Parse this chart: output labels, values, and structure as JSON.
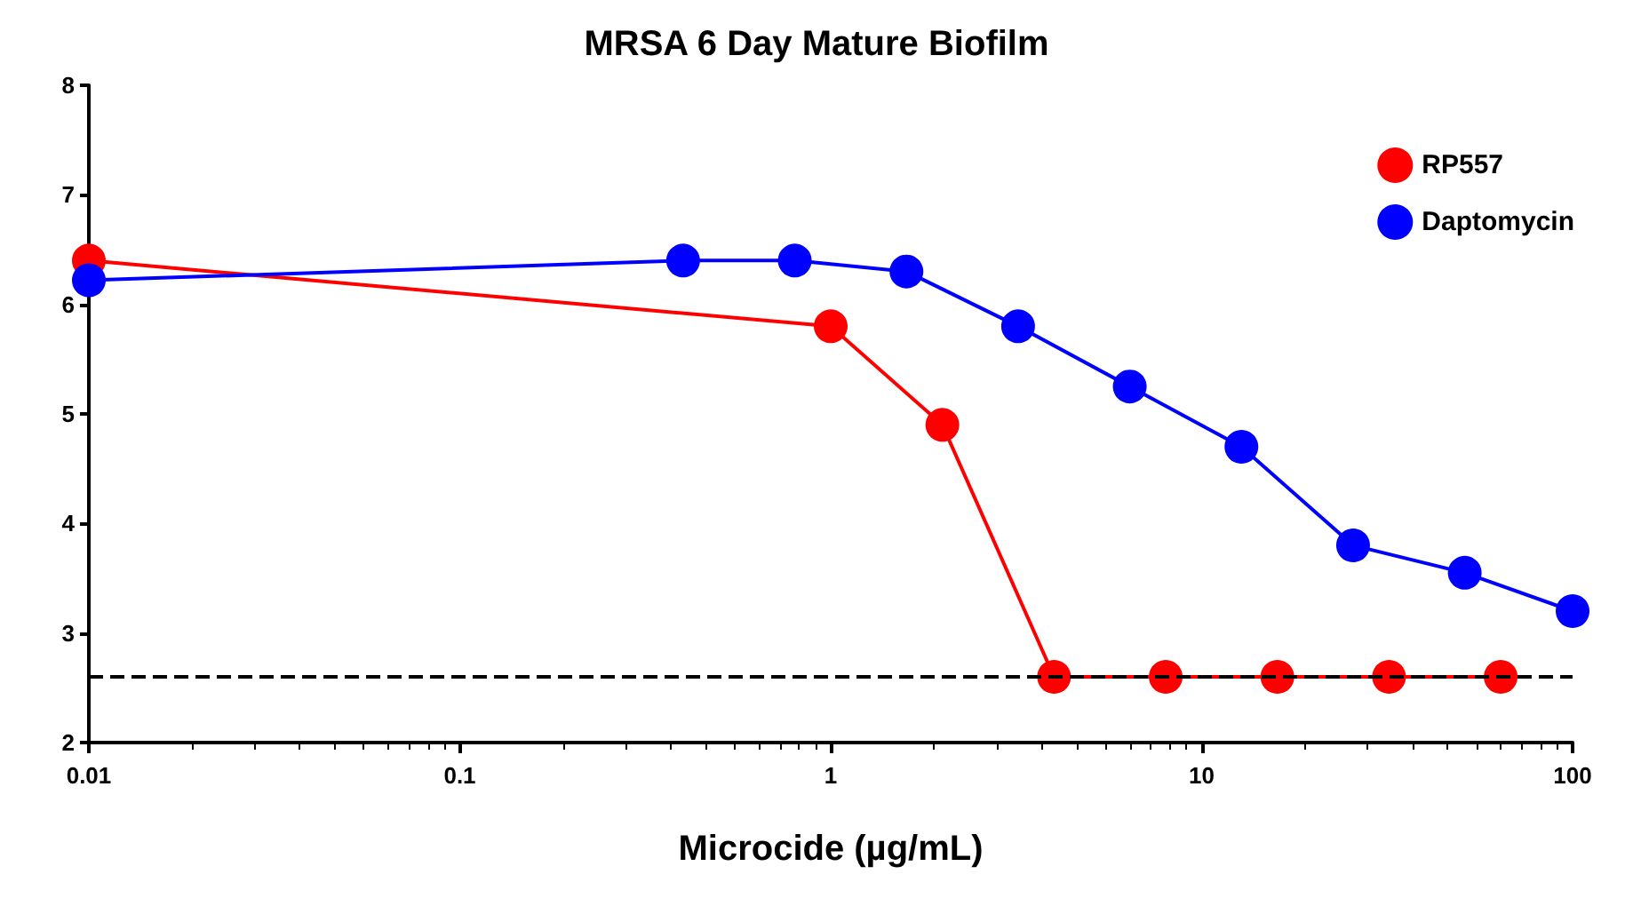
{
  "chart_data": {
    "type": "line",
    "title": "MRSA 6 Day Mature Biofilm",
    "xlabel": "Microcide (µg/mL)",
    "log": "x",
    "xlim": [
      0.01,
      100
    ],
    "xticks": [
      0.01,
      0.1,
      1,
      10,
      100
    ],
    "ylim": [
      2,
      8
    ],
    "yticks": [
      2,
      3,
      4,
      5,
      6,
      7,
      8
    ],
    "grid": false,
    "legend": "top right",
    "marker": "circle",
    "line_style": "solid",
    "series": [
      {
        "name": "RP557",
        "color": "#ff0000",
        "x": [
          0.01,
          1,
          2,
          4,
          8,
          16,
          32,
          64
        ],
        "values": [
          6.4,
          5.8,
          4.9,
          2.6,
          2.6,
          2.6,
          2.6,
          2.6
        ]
      },
      {
        "name": "Daptomycin",
        "color": "#0000ff",
        "x": [
          0.01,
          0.4,
          0.8,
          1.6,
          3.2,
          6.4,
          12.8,
          25.6,
          51.2,
          100
        ],
        "values": [
          6.22,
          6.4,
          6.4,
          6.3,
          5.8,
          5.25,
          4.7,
          3.8,
          3.55,
          3.2
        ]
      }
    ],
    "ref_lines": [
      {
        "axis": "y",
        "value": 2.6,
        "color": "#000000",
        "line_style": "dashed"
      }
    ]
  }
}
